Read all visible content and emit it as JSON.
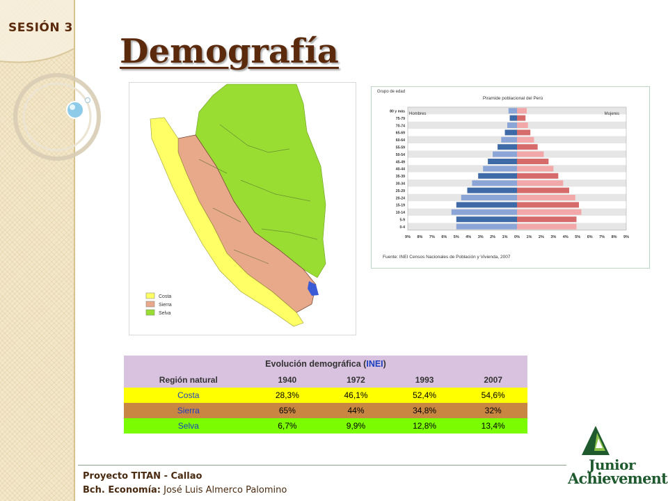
{
  "session": "SESIÓN 3",
  "title": "Demografía",
  "map": {
    "legend": [
      {
        "label": "Costa",
        "color": "#ffff66"
      },
      {
        "label": "Sierra",
        "color": "#e8a98a"
      },
      {
        "label": "Selva",
        "color": "#99dd33"
      }
    ]
  },
  "pyramid": {
    "ylabel": "Grupo de edad",
    "title": "Piramide poblacional del Perú",
    "left_label": "Hombres",
    "right_label": "Mujeres",
    "source": "Fuente: INEI Censos Nacionales de Población y Vivienda, 2007",
    "x_ticks": [
      "9%",
      "8%",
      "7%",
      "6%",
      "5%",
      "4%",
      "3%",
      "2%",
      "1%",
      "0%",
      "1%",
      "2%",
      "3%",
      "4%",
      "5%",
      "6%",
      "7%",
      "8%",
      "9%"
    ]
  },
  "chart_data": {
    "type": "bar",
    "orientation": "horizontal-pyramid",
    "title": "Piramide poblacional del Perú",
    "ylabel": "Grupo de edad",
    "xlim": [
      -9,
      9
    ],
    "categories": [
      "80 y más",
      "75-79",
      "70-74",
      "65-69",
      "60-64",
      "55-59",
      "50-54",
      "45-49",
      "40-44",
      "35-39",
      "30-34",
      "25-29",
      "20-24",
      "15-19",
      "10-14",
      "5-9",
      "0-4"
    ],
    "series": [
      {
        "name": "Hombres",
        "values": [
          0.7,
          0.6,
          0.8,
          1.0,
          1.3,
          1.6,
          2.0,
          2.4,
          2.8,
          3.2,
          3.7,
          4.1,
          4.6,
          5.0,
          5.4,
          5.0,
          5.0
        ]
      },
      {
        "name": "Mujeres",
        "values": [
          0.8,
          0.7,
          0.9,
          1.1,
          1.4,
          1.7,
          2.2,
          2.6,
          3.0,
          3.4,
          3.8,
          4.3,
          4.8,
          5.1,
          5.3,
          4.9,
          4.9
        ]
      }
    ]
  },
  "table": {
    "title_main": "Evolución demográfica (",
    "title_accent": "INEI",
    "title_end": ")",
    "header": [
      "Región natural",
      "1940",
      "1972",
      "1993",
      "2007"
    ],
    "rows": [
      {
        "region": "Costa",
        "values": [
          "28,3%",
          "46,1%",
          "52,4%",
          "54,6%"
        ]
      },
      {
        "region": "Sierra",
        "values": [
          "65%",
          "44%",
          "34,8%",
          "32%"
        ]
      },
      {
        "region": "Selva",
        "values": [
          "6,7%",
          "9,9%",
          "12,8%",
          "13,4%"
        ]
      }
    ]
  },
  "footer": {
    "line1": "Proyecto TITAN - Callao",
    "line2_label": "Bch. Economía:",
    "line2_name": " José Luis Almerco Palomino"
  },
  "logo": {
    "line1": "Junior",
    "line2": "Achievement",
    "mark": "®"
  }
}
